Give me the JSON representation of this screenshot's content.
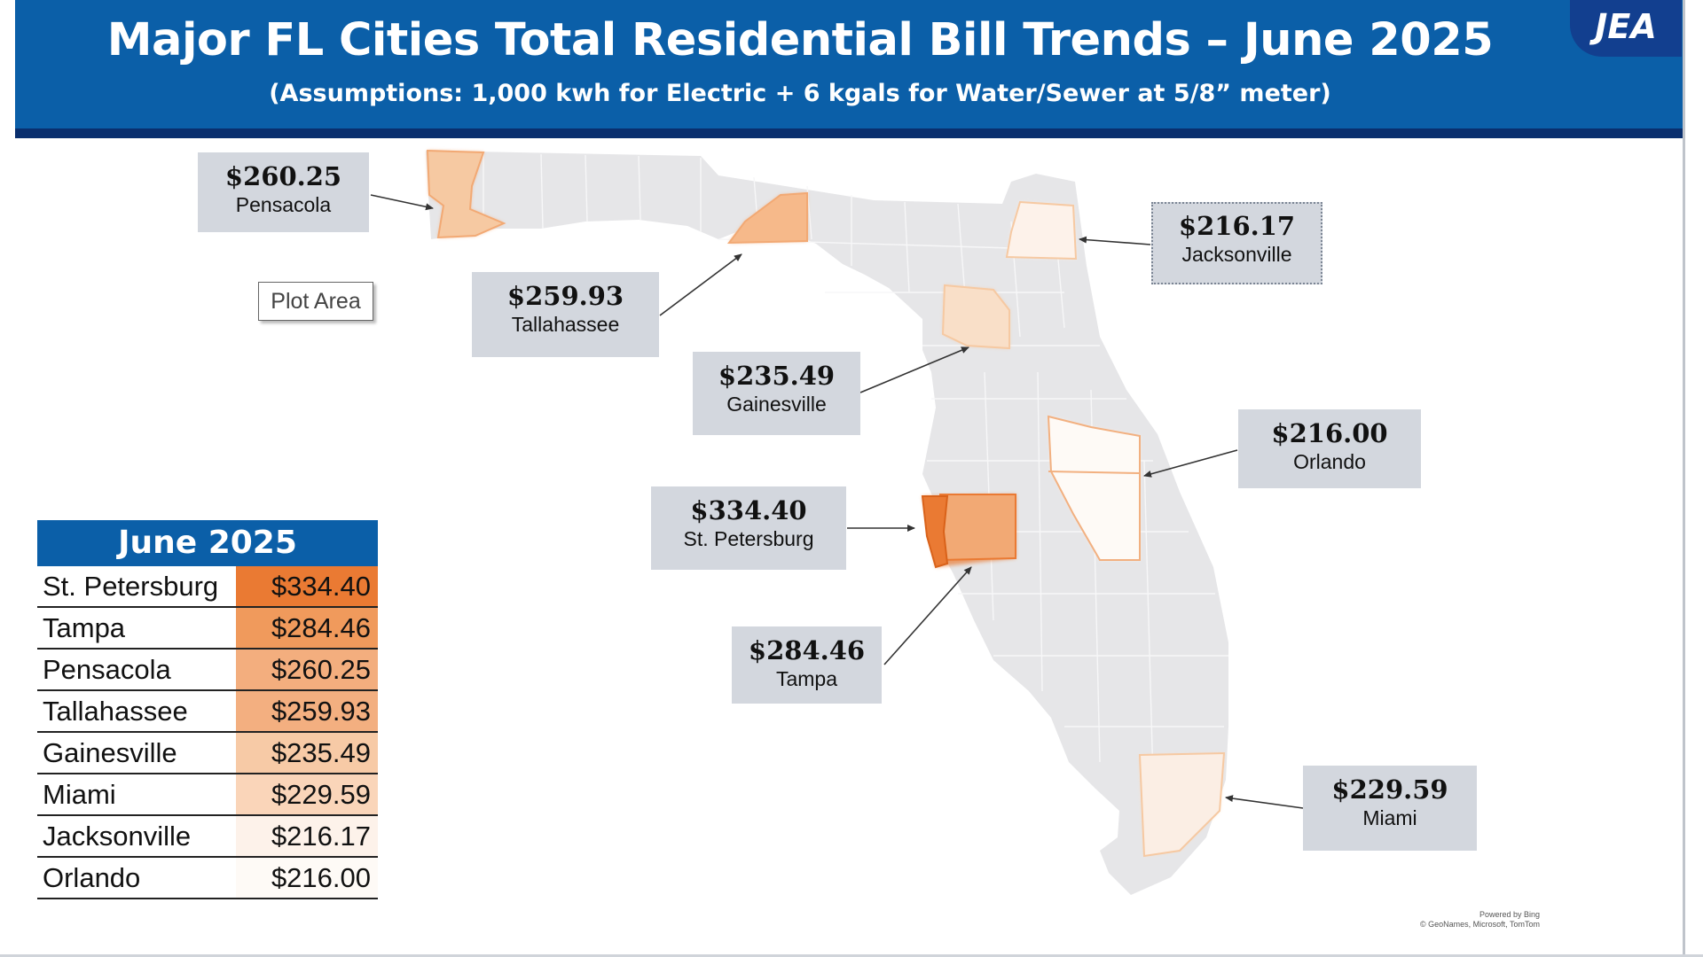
{
  "header": {
    "title": "Major FL Cities Total Residential Bill Trends – June 2025",
    "subtitle": "(Assumptions: 1,000 kwh for Electric + 6 kgals for Water/Sewer at 5/8” meter)",
    "logo_text": "JEA",
    "colors": {
      "header_bg": "#0b5fa8",
      "header_bar": "#0a2f6e",
      "callout_bg": "#d3d7de"
    }
  },
  "plot_area_label": "Plot Area",
  "map": {
    "base_color": "#e6e6e8",
    "highlight_scale": [
      "#fbeee4",
      "#f9dfc8",
      "#f6c9a2",
      "#f2a974",
      "#ea7a33"
    ],
    "callouts": [
      {
        "id": "pensacola",
        "value": "$260.25",
        "city": "Pensacola"
      },
      {
        "id": "tallahassee",
        "value": "$259.93",
        "city": "Tallahassee"
      },
      {
        "id": "jacksonville",
        "value": "$216.17",
        "city": "Jacksonville"
      },
      {
        "id": "gainesville",
        "value": "$235.49",
        "city": "Gainesville"
      },
      {
        "id": "orlando",
        "value": "$216.00",
        "city": "Orlando"
      },
      {
        "id": "st-petersburg",
        "value": "$334.40",
        "city": "St. Petersburg"
      },
      {
        "id": "tampa",
        "value": "$284.46",
        "city": "Tampa"
      },
      {
        "id": "miami",
        "value": "$229.59",
        "city": "Miami"
      }
    ]
  },
  "table": {
    "header": "June 2025",
    "rows": [
      {
        "city": "St. Petersburg",
        "value": "$334.40",
        "color": "#ea7a33"
      },
      {
        "city": "Tampa",
        "value": "$284.46",
        "color": "#f09a5c"
      },
      {
        "city": "Pensacola",
        "value": "$260.25",
        "color": "#f3ae7e"
      },
      {
        "city": "Tallahassee",
        "value": "$259.93",
        "color": "#f3af80"
      },
      {
        "city": "Gainesville",
        "value": "$235.49",
        "color": "#f7caa6"
      },
      {
        "city": "Miami",
        "value": "$229.59",
        "color": "#fad5b9"
      },
      {
        "city": "Jacksonville",
        "value": "$216.17",
        "color": "#fdf2ea"
      },
      {
        "city": "Orlando",
        "value": "$216.00",
        "color": "#fefaf6"
      }
    ]
  },
  "credit": {
    "line1": "Powered by Bing",
    "line2": "© GeoNames, Microsoft, TomTom"
  }
}
